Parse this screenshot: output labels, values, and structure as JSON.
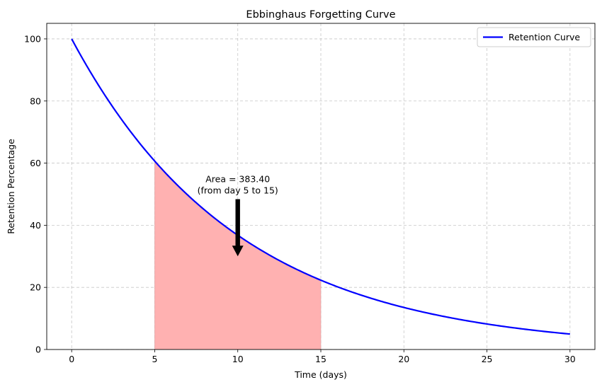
{
  "chart_data": {
    "type": "line",
    "title": "Ebbinghaus Forgetting Curve",
    "xlabel": "Time (days)",
    "ylabel": "Retention Percentage",
    "xlim": [
      -1.5,
      31.5
    ],
    "ylim": [
      0,
      105
    ],
    "xticks": [
      0,
      5,
      10,
      15,
      20,
      25,
      30
    ],
    "yticks": [
      0,
      20,
      40,
      60,
      80,
      100
    ],
    "grid": true,
    "legend_position": "top-right",
    "series": [
      {
        "name": "Retention Curve",
        "color": "#0000ff",
        "x": [
          0,
          1,
          2,
          3,
          4,
          5,
          6,
          7,
          8,
          9,
          10,
          11,
          12,
          13,
          14,
          15,
          16,
          17,
          18,
          19,
          20,
          21,
          22,
          23,
          24,
          25,
          26,
          27,
          28,
          29,
          30
        ],
        "y": [
          100,
          90.5,
          81.9,
          74.1,
          67.0,
          60.7,
          54.9,
          49.7,
          45.0,
          40.7,
          36.8,
          33.3,
          30.1,
          27.3,
          24.7,
          22.3,
          20.2,
          18.3,
          16.5,
          15.0,
          13.5,
          12.2,
          11.1,
          10.0,
          9.1,
          8.2,
          7.4,
          6.7,
          6.1,
          5.5,
          5.0
        ]
      }
    ],
    "shaded_region": {
      "x_start": 5,
      "x_end": 15,
      "color": "#ffb1b1"
    },
    "annotation": {
      "lines": [
        "Area = 383.40",
        "(from day 5 to 15)"
      ],
      "text_x": 10,
      "text_y": 50,
      "arrow_to_x": 10,
      "arrow_to_y": 30
    }
  }
}
